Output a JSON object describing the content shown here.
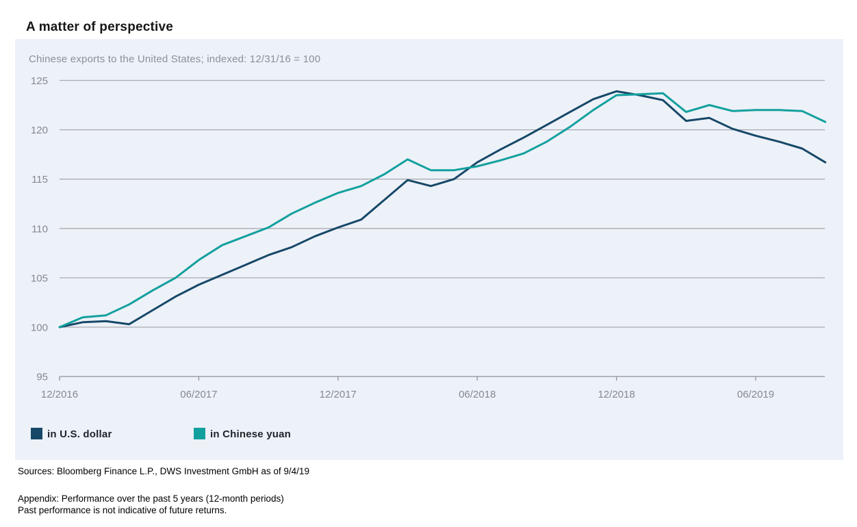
{
  "page": {
    "title": "A matter of perspective"
  },
  "chart_data": {
    "type": "line",
    "title": "A matter of perspective",
    "subtitle": "Chinese exports to the United States; indexed: 12/31/16 = 100",
    "x_unit": "months, monthly data points from 12/2016 to 09/2019",
    "x_tick_labels": [
      "12/2016",
      "06/2017",
      "12/2017",
      "06/2018",
      "12/2018",
      "06/2019"
    ],
    "x_tick_month_indices": [
      0,
      6,
      12,
      18,
      24,
      30
    ],
    "yticks": [
      95,
      100,
      105,
      110,
      115,
      120,
      125
    ],
    "ylim": [
      95,
      125
    ],
    "grid": "horizontal",
    "legend_position": "bottom-left",
    "series": [
      {
        "name": "in U.S. dollar",
        "color": "#164868",
        "values": [
          100.0,
          100.5,
          100.6,
          100.3,
          101.7,
          103.1,
          104.3,
          105.3,
          106.3,
          107.3,
          108.1,
          109.2,
          110.1,
          110.9,
          112.9,
          114.9,
          114.3,
          115.0,
          116.7,
          118.0,
          119.2,
          120.5,
          121.8,
          123.1,
          123.9,
          123.5,
          123.0,
          120.9,
          121.2,
          120.1,
          119.4,
          118.8,
          118.1,
          116.7
        ]
      },
      {
        "name": "in Chinese yuan",
        "color": "#12a09e",
        "values": [
          100.0,
          101.0,
          101.2,
          102.3,
          103.7,
          105.0,
          106.8,
          108.3,
          109.2,
          110.1,
          111.5,
          112.6,
          113.6,
          114.3,
          115.5,
          117.0,
          115.9,
          115.9,
          116.3,
          116.9,
          117.6,
          118.8,
          120.3,
          122.0,
          123.5,
          123.6,
          123.7,
          121.8,
          122.5,
          121.9,
          122.0,
          122.0,
          121.9,
          120.8
        ]
      }
    ]
  },
  "footer": {
    "sources": "Sources: Bloomberg Finance L.P., DWS Investment GmbH as of 9/4/19",
    "appendix": "Appendix: Performance over the past 5 years (12-month periods)",
    "disclaimer": "Past performance is not indicative of future returns."
  },
  "style": {
    "panel_bg": "#edf1f8",
    "gridline_color": "#a9abb2",
    "axis_color": "#8f9298",
    "tick_text_color": "#85888f",
    "line_width": 3
  }
}
